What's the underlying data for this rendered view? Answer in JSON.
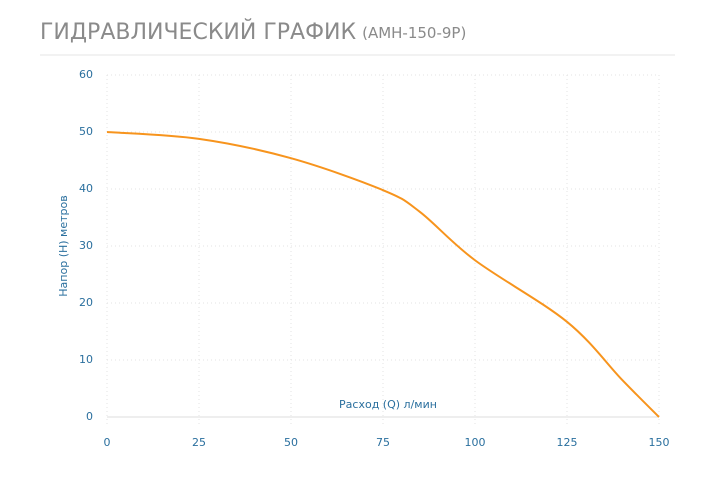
{
  "chart_data": {
    "type": "line",
    "title": "ГИДРАВЛИЧЕСКИЙ ГРАФИК",
    "subtitle": "(АМН-150-9Р)",
    "x_label": "Расход (Q) л/мин",
    "y_label": "Напор (H) метров",
    "x": [
      0,
      25,
      50,
      75,
      85,
      100,
      125,
      140,
      150
    ],
    "series": [
      {
        "color": "#f7941d",
        "values": [
          50,
          48.8,
          45.4,
          39.8,
          36,
          27.5,
          16.7,
          6.5,
          0
        ]
      }
    ],
    "xlim": [
      0,
      150
    ],
    "xticks": [
      0,
      25,
      50,
      75,
      100,
      125,
      150
    ],
    "ylim": [
      0,
      60
    ],
    "yticks": [
      0,
      10,
      20,
      30,
      40,
      50,
      60
    ],
    "grid": true
  }
}
